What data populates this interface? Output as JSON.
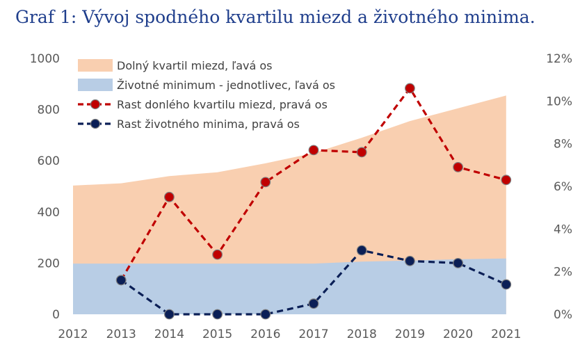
{
  "chart_data": {
    "type": "area+line",
    "title": "Graf 1: Vývoj spodného kvartilu miezd a životného minima.",
    "categories": [
      "2012",
      "2013",
      "2014",
      "2015",
      "2016",
      "2017",
      "2018",
      "2019",
      "2020",
      "2021"
    ],
    "left_axis": {
      "ylim": [
        0,
        1000
      ],
      "ticks": [
        "0",
        "200",
        "400",
        "600",
        "800",
        "1000"
      ]
    },
    "right_axis": {
      "ylim": [
        0,
        12
      ],
      "ticks": [
        "0%",
        "2%",
        "4%",
        "6%",
        "8%",
        "10%",
        "12%"
      ]
    },
    "series": [
      {
        "name": "Dolný kvartil miezd, ľavá os",
        "kind": "area",
        "axis": "left",
        "color": "#f9cfb0",
        "values": [
          503,
          512,
          540,
          555,
          590,
          630,
          690,
          755,
          805,
          855
        ]
      },
      {
        "name": "Životné minimum - jednotlivec, ľavá os",
        "kind": "area",
        "axis": "left",
        "color": "#b8cde5",
        "values": [
          198,
          198,
          198,
          198,
          198,
          198,
          206,
          210,
          215,
          218
        ]
      },
      {
        "name": "Rast donlého kvartilu miezd, pravá os",
        "kind": "line",
        "axis": "right",
        "color": "#c00000",
        "values": [
          null,
          1.6,
          5.5,
          2.8,
          6.2,
          7.7,
          7.6,
          10.6,
          6.9,
          6.3
        ]
      },
      {
        "name": "Rast životného minima, pravá os",
        "kind": "line",
        "axis": "right",
        "color": "#0b1f56",
        "values": [
          null,
          1.6,
          0.0,
          0.0,
          0.0,
          0.5,
          3.0,
          2.5,
          2.4,
          1.4
        ]
      }
    ]
  }
}
